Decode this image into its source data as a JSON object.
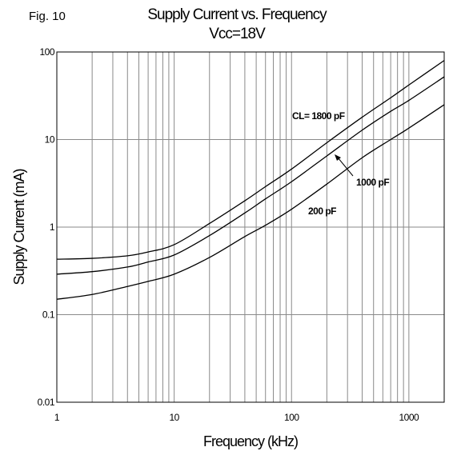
{
  "figure_label": "Fig. 10",
  "chart_data": {
    "type": "line",
    "title": "Supply Current vs. Frequency",
    "subtitle": "Vcc=18V",
    "xlabel": "Frequency (kHz)",
    "ylabel": "Supply Current (mA)",
    "x_scale": "log",
    "y_scale": "log",
    "xlim": [
      1,
      2000
    ],
    "ylim": [
      0.01,
      100
    ],
    "grid": true,
    "x_ticks": [
      {
        "value": 1,
        "label": "1"
      },
      {
        "value": 10,
        "label": "10"
      },
      {
        "value": 100,
        "label": "100"
      },
      {
        "value": 1000,
        "label": "1000"
      }
    ],
    "y_ticks": [
      {
        "value": 0.01,
        "label": "0.01"
      },
      {
        "value": 0.1,
        "label": "0.1"
      },
      {
        "value": 1,
        "label": "1"
      },
      {
        "value": 10,
        "label": "10"
      },
      {
        "value": 100,
        "label": "100"
      }
    ],
    "series": [
      {
        "name": "CL= 1800 pF",
        "x": [
          1,
          2,
          4,
          6,
          10,
          20,
          40,
          60,
          100,
          200,
          400,
          700,
          1000,
          2000
        ],
        "y": [
          0.43,
          0.44,
          0.47,
          0.52,
          0.63,
          1.1,
          2.0,
          2.9,
          4.6,
          9.2,
          18,
          30,
          42,
          80
        ]
      },
      {
        "name": "1000 pF",
        "x": [
          1,
          2,
          4,
          6,
          10,
          20,
          40,
          60,
          100,
          200,
          400,
          700,
          1000,
          2000
        ],
        "y": [
          0.29,
          0.31,
          0.35,
          0.4,
          0.48,
          0.8,
          1.45,
          2.1,
          3.3,
          6.5,
          12.8,
          21,
          28,
          52
        ]
      },
      {
        "name": "200 pF",
        "x": [
          1,
          2,
          4,
          6,
          10,
          20,
          40,
          60,
          100,
          200,
          400,
          700,
          1000,
          2000
        ],
        "y": [
          0.15,
          0.17,
          0.21,
          0.24,
          0.29,
          0.45,
          0.78,
          1.05,
          1.6,
          3.1,
          6.2,
          10,
          13.5,
          25
        ]
      }
    ]
  }
}
